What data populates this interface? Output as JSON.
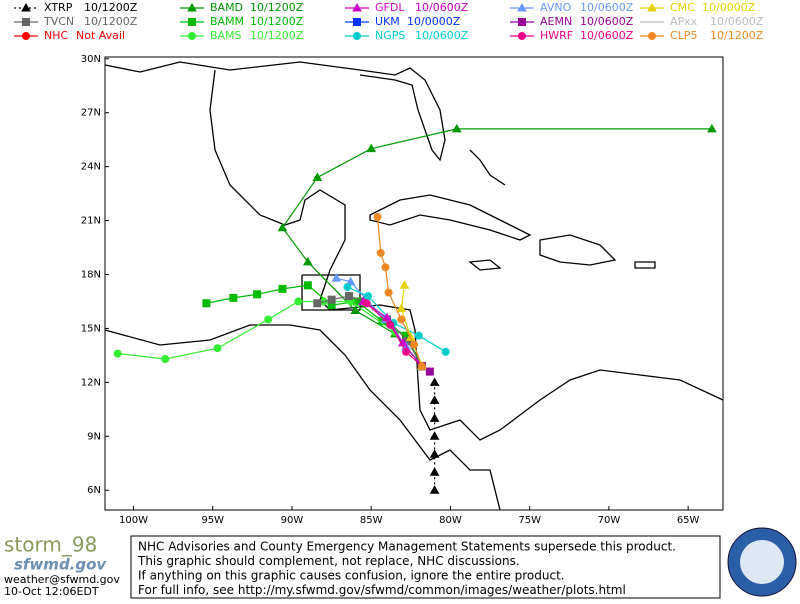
{
  "legend": [
    {
      "name": "XTRP",
      "time": "10/1200Z",
      "color": "#000000",
      "marker": "triangle",
      "dash": true
    },
    {
      "name": "BAMD",
      "time": "10/1200Z",
      "color": "#009900",
      "marker": "triangle"
    },
    {
      "name": "GFDL",
      "time": "10/0600Z",
      "color": "#cc00cc",
      "marker": "triangle"
    },
    {
      "name": "AVNO",
      "time": "10/0600Z",
      "color": "#6699ff",
      "marker": "triangle"
    },
    {
      "name": "CMC",
      "time": "10/0000Z",
      "color": "#e6d200",
      "marker": "triangle"
    },
    {
      "name": "TVCN",
      "time": "10/1200Z",
      "color": "#666666",
      "marker": "square"
    },
    {
      "name": "BAMM",
      "time": "10/1200Z",
      "color": "#00bb00",
      "marker": "square"
    },
    {
      "name": "UKM",
      "time": "10/0000Z",
      "color": "#0033ff",
      "marker": "square"
    },
    {
      "name": "AEMN",
      "time": "10/0600Z",
      "color": "#990099",
      "marker": "square"
    },
    {
      "name": "APxx",
      "time": "10/0600Z",
      "color": "#bbbbbb",
      "marker": "none"
    },
    {
      "name": "NHC",
      "time": "Not Avail",
      "color": "#ff0000",
      "marker": "circle"
    },
    {
      "name": "BAMS",
      "time": "10/1200Z",
      "color": "#33ee33",
      "marker": "circle"
    },
    {
      "name": "NGPS",
      "time": "10/0600Z",
      "color": "#00cccc",
      "marker": "circle"
    },
    {
      "name": "HWRF",
      "time": "10/0600Z",
      "color": "#ee0088",
      "marker": "circle"
    },
    {
      "name": "CLP5",
      "time": "10/1200Z",
      "color": "#ee8822",
      "marker": "circle"
    }
  ],
  "map": {
    "lonlim": [
      -101.8,
      -62.8
    ],
    "latlim": [
      4.9,
      30.1
    ],
    "lonticks": [
      {
        "value": -100,
        "label": "100W"
      },
      {
        "value": -95,
        "label": "95W"
      },
      {
        "value": -90,
        "label": "90W"
      },
      {
        "value": -85,
        "label": "85W"
      },
      {
        "value": -80,
        "label": "80W"
      },
      {
        "value": -75,
        "label": "75W"
      },
      {
        "value": -70,
        "label": "70W"
      },
      {
        "value": -65,
        "label": "65W"
      }
    ],
    "latticks": [
      {
        "value": 6,
        "label": "6N"
      },
      {
        "value": 9,
        "label": "9N"
      },
      {
        "value": 12,
        "label": "12N"
      },
      {
        "value": 15,
        "label": "15N"
      },
      {
        "value": 18,
        "label": "18N"
      },
      {
        "value": 21,
        "label": "21N"
      },
      {
        "value": 24,
        "label": "24N"
      },
      {
        "value": 27,
        "label": "27N"
      },
      {
        "value": 30,
        "label": "30N"
      }
    ],
    "tracks": [
      {
        "legend": 0,
        "lon": [
          -81,
          -81,
          -81,
          -81,
          -81,
          -81,
          -81
        ],
        "lat": [
          12,
          11,
          10,
          9,
          8,
          7,
          6
        ]
      },
      {
        "legend": 1,
        "lon": [
          -81.8,
          -83.5,
          -86,
          -89,
          -90.6,
          -88.4,
          -85,
          -79.6,
          -63.5
        ],
        "lat": [
          12.9,
          14.7,
          16,
          18.7,
          20.6,
          23.4,
          25,
          26.1,
          26.1
        ]
      },
      {
        "legend": 6,
        "lon": [
          -81.8,
          -82.8,
          -84.3,
          -85.9,
          -87.5,
          -89,
          -90.6,
          -92.2,
          -93.7,
          -95.4
        ],
        "lat": [
          12.9,
          14.6,
          15.4,
          16.5,
          16.3,
          17.4,
          17.2,
          16.9,
          16.7,
          16.4
        ]
      },
      {
        "legend": 11,
        "lon": [
          -81.8,
          -83.5,
          -86.3,
          -88,
          -89.6,
          -91.5,
          -94.7,
          -98,
          -101
        ],
        "lat": [
          12.9,
          14.8,
          16.5,
          16.5,
          16.5,
          15.5,
          13.9,
          13.3,
          13.6
        ]
      },
      {
        "legend": 5,
        "lon": [
          -81.8,
          -82.7,
          -84,
          -85.4,
          -86.4,
          -87.5,
          -88.4
        ],
        "lat": [
          12.9,
          14.3,
          15.5,
          16.5,
          16.8,
          16.6,
          16.4
        ]
      },
      {
        "legend": 3,
        "lon": [
          -81.8,
          -82.8,
          -84.1,
          -85.3,
          -86.3,
          -87.2
        ],
        "lat": [
          12.9,
          14,
          15.5,
          16.6,
          17.6,
          17.8
        ]
      },
      {
        "legend": 12,
        "lon": [
          -80.3,
          -82,
          -83.6,
          -85.2,
          -86.5
        ],
        "lat": [
          13.7,
          14.6,
          15.3,
          16.8,
          17.3
        ]
      },
      {
        "legend": 2,
        "lon": [
          -81.8,
          -83,
          -84,
          -85.5
        ],
        "lat": [
          12.9,
          14.2,
          15.6,
          16.5
        ]
      },
      {
        "legend": 8,
        "lon": [
          -81.8,
          -81.3
        ],
        "lat": [
          12.9,
          12.6
        ]
      },
      {
        "legend": 13,
        "lon": [
          -81.8,
          -82.8,
          -83.8,
          -85.3
        ],
        "lat": [
          12.9,
          13.7,
          15.2,
          16.4
        ]
      },
      {
        "legend": 4,
        "lon": [
          -81.8,
          -82.5,
          -83.1,
          -82.9
        ],
        "lat": [
          12.9,
          14.5,
          16.1,
          17.4
        ]
      },
      {
        "legend": 14,
        "lon": [
          -81.8,
          -82.3,
          -83.1,
          -83.9,
          -84.1,
          -84.4,
          -84.6
        ],
        "lat": [
          12.9,
          14.1,
          15.5,
          17,
          18.4,
          19.2,
          21.2
        ]
      }
    ]
  },
  "footer": {
    "brand": "storm_98",
    "logo": "sfwmd.gov",
    "email": "weather@sfwmd.gov",
    "timestamp": "10-Oct 12:06EDT",
    "notice": [
      "NHC Advisories and County Emergency Management Statements supersede this product.",
      "This graphic should complement, not replace, NHC discussions.",
      "If anything on this graphic causes confusion, ignore the entire product.",
      "For full info, see  http://my.sfwmd.gov/sfwmd/common/images/weather/plots.html"
    ]
  }
}
